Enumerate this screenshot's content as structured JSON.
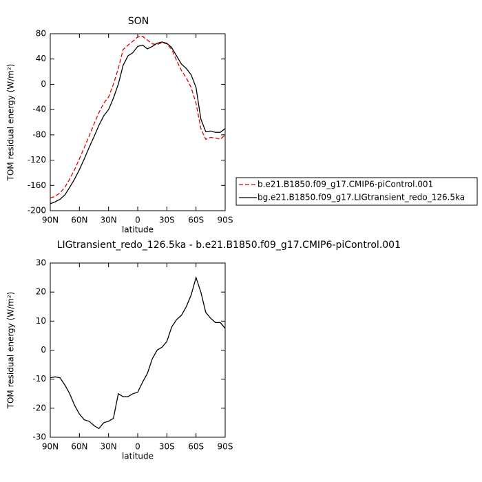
{
  "chart_data": [
    {
      "type": "line",
      "title": "SON",
      "x_label": "latitude",
      "y_label": "TOM residual energy (W/m²)",
      "x": [
        90,
        85,
        80,
        75,
        70,
        65,
        60,
        55,
        50,
        45,
        40,
        35,
        30,
        25,
        20,
        15,
        10,
        5,
        0,
        -5,
        -10,
        -15,
        -20,
        -25,
        -30,
        -35,
        -40,
        -45,
        -50,
        -55,
        -60,
        -65,
        -70,
        -75,
        -80,
        -85,
        -90
      ],
      "series": [
        {
          "name": "b.e21.B1850.f09_g17.CMIP6-piControl.001",
          "color": "#e00000",
          "style": "dashed",
          "values": [
            -180,
            -177,
            -172,
            -163,
            -150,
            -135,
            -118,
            -100,
            -82,
            -63,
            -45,
            -30,
            -20,
            0,
            25,
            55,
            62,
            68,
            75,
            76,
            70,
            64,
            63,
            66,
            64,
            55,
            38,
            22,
            10,
            -5,
            -30,
            -70,
            -87,
            -84,
            -85,
            -87,
            -80
          ]
        },
        {
          "name": "bg.e21.B1850.f09_g17.LIGtransient_redo_126.5ka",
          "color": "#000000",
          "style": "solid",
          "values": [
            -189,
            -186,
            -182,
            -175,
            -163,
            -150,
            -135,
            -118,
            -100,
            -83,
            -65,
            -50,
            -40,
            -22,
            0,
            30,
            45,
            50,
            60,
            62,
            56,
            60,
            65,
            67,
            65,
            58,
            45,
            32,
            25,
            15,
            -5,
            -55,
            -75,
            -74,
            -76,
            -76,
            -70
          ]
        }
      ],
      "xlim": [
        90,
        -90
      ],
      "xticks": [
        {
          "value": 90,
          "label": "90N"
        },
        {
          "value": 60,
          "label": "60N"
        },
        {
          "value": 30,
          "label": "30N"
        },
        0,
        {
          "value": -30,
          "label": "30S"
        },
        {
          "value": -60,
          "label": "60S"
        },
        {
          "value": -90,
          "label": "90S"
        }
      ],
      "ylim": [
        -200,
        80
      ],
      "yticks": [
        -200,
        -160,
        -120,
        -80,
        -40,
        0,
        40,
        80
      ],
      "legend": "right"
    },
    {
      "type": "line",
      "title": "LIGtransient_redo_126.5ka - b.e21.B1850.f09_g17.CMIP6-piControl.001",
      "x_label": "latitude",
      "y_label": "TOM residual energy (W/m²)",
      "x": [
        90,
        85,
        80,
        75,
        70,
        65,
        60,
        55,
        50,
        45,
        40,
        35,
        30,
        25,
        20,
        15,
        10,
        5,
        0,
        -5,
        -10,
        -15,
        -20,
        -25,
        -30,
        -35,
        -40,
        -45,
        -50,
        -55,
        -60,
        -65,
        -70,
        -75,
        -80,
        -85,
        -90
      ],
      "series": [
        {
          "color": "#000000",
          "style": "solid",
          "values": [
            -9.5,
            -9.2,
            -9.5,
            -12,
            -15,
            -19,
            -22,
            -24,
            -24.5,
            -26,
            -27,
            -25,
            -24.5,
            -23.5,
            -15,
            -16,
            -16,
            -15,
            -14.5,
            -11,
            -8,
            -3,
            0,
            1,
            3,
            8,
            10.5,
            12,
            15,
            19,
            25,
            20,
            13,
            11,
            9.5,
            9.5,
            7.5
          ]
        }
      ],
      "xlim": [
        90,
        -90
      ],
      "xticks": [
        {
          "value": 90,
          "label": "90N"
        },
        {
          "value": 60,
          "label": "60N"
        },
        {
          "value": 30,
          "label": "30N"
        },
        0,
        {
          "value": -30,
          "label": "30S"
        },
        {
          "value": -60,
          "label": "60S"
        },
        {
          "value": -90,
          "label": "90S"
        }
      ],
      "ylim": [
        -30,
        30
      ],
      "yticks": [
        -30,
        -20,
        -10,
        0,
        10,
        20,
        30
      ]
    }
  ]
}
